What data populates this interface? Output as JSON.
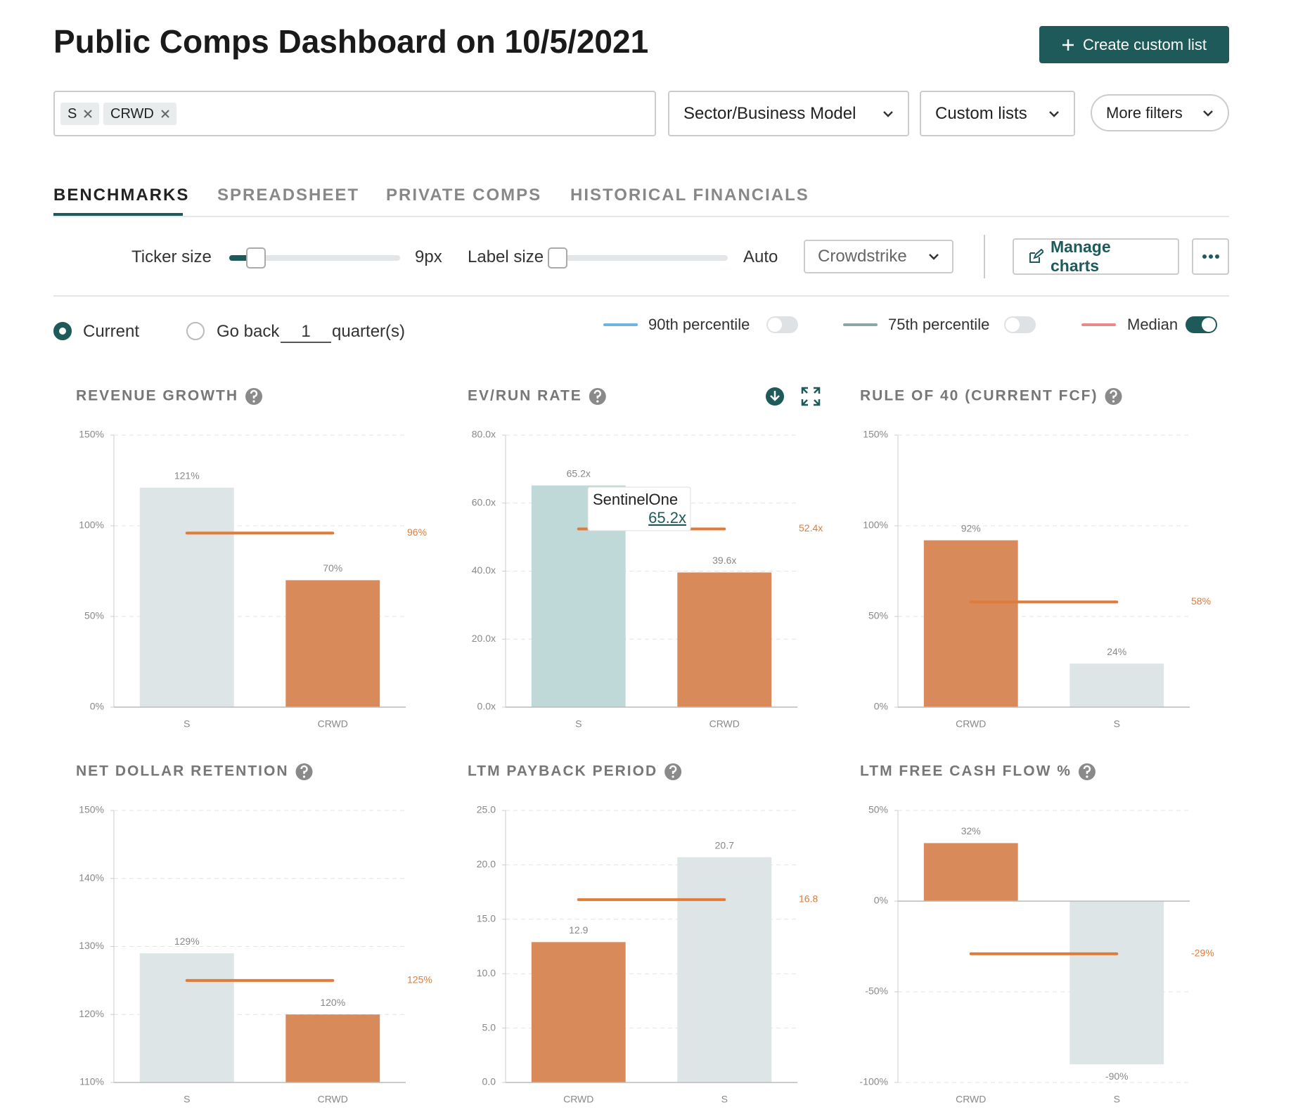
{
  "header": {
    "title": "Public Comps Dashboard on 10/5/2021",
    "button": "Create custom list"
  },
  "filters": {
    "chips": [
      "S",
      "CRWD"
    ],
    "dropdowns": [
      "Sector/Business Model",
      "Custom lists",
      "More filters"
    ]
  },
  "tabs": [
    "BENCHMARKS",
    "SPREADSHEET",
    "PRIVATE COMPS",
    "HISTORICAL FINANCIALS"
  ],
  "controls": {
    "ticker_size": "Ticker size",
    "ticker_value": "9px",
    "label_size": "Label size",
    "label_value": "Auto",
    "company": "Crowdstrike",
    "manage": "Manage charts"
  },
  "period": {
    "current": "Current",
    "go_back": "Go back",
    "quarters": "1",
    "unit": "quarter(s)"
  },
  "legend": [
    {
      "label": "90th percentile",
      "color": "#6fb3e0",
      "on": false
    },
    {
      "label": "75th percentile",
      "color": "#8aa7a3",
      "on": false
    },
    {
      "label": "Median",
      "color": "#e88a8a",
      "on": true
    }
  ],
  "chart_data": [
    {
      "type": "bar",
      "title": "REVENUE GROWTH",
      "categories": [
        "S",
        "CRWD"
      ],
      "values": [
        121,
        70
      ],
      "value_labels": [
        "121%",
        "70%"
      ],
      "colors": [
        "#dde5e6",
        "#d98a5b"
      ],
      "median": {
        "value": 96,
        "label": "96%"
      },
      "median_color": "#e07b39",
      "ylim": [
        0,
        150
      ],
      "yticks": [
        {
          "value": 0,
          "label": "0%"
        },
        {
          "value": 50,
          "label": "50%"
        },
        {
          "value": 100,
          "label": "100%"
        },
        {
          "value": 150,
          "label": "150%"
        }
      ],
      "grid": true
    },
    {
      "type": "bar",
      "title": "EV/RUN RATE",
      "categories": [
        "S",
        "CRWD"
      ],
      "values": [
        65.2,
        39.6
      ],
      "value_labels": [
        "65.2x",
        "39.6x"
      ],
      "colors": [
        "#bfd9d8",
        "#d98a5b"
      ],
      "median": {
        "value": 52.4,
        "label": "52.4x"
      },
      "median_color": "#e07b39",
      "ylim": [
        0,
        80
      ],
      "yticks": [
        {
          "value": 0,
          "label": "0.0x"
        },
        {
          "value": 20,
          "label": "20.0x"
        },
        {
          "value": 40,
          "label": "40.0x"
        },
        {
          "value": 60,
          "label": "60.0x"
        },
        {
          "value": 80,
          "label": "80.0x"
        }
      ],
      "grid": true,
      "tooltip": {
        "title": "SentinelOne",
        "label": "65.2x"
      }
    },
    {
      "type": "bar",
      "title": "RULE OF 40 (CURRENT FCF)",
      "categories": [
        "CRWD",
        "S"
      ],
      "values": [
        92,
        24
      ],
      "value_labels": [
        "92%",
        "24%"
      ],
      "colors": [
        "#d98a5b",
        "#dde5e6"
      ],
      "median": {
        "value": 58,
        "label": "58%"
      },
      "median_color": "#e07b39",
      "ylim": [
        0,
        150
      ],
      "yticks": [
        {
          "value": 0,
          "label": "0%"
        },
        {
          "value": 50,
          "label": "50%"
        },
        {
          "value": 100,
          "label": "100%"
        },
        {
          "value": 150,
          "label": "150%"
        }
      ],
      "grid": true
    },
    {
      "type": "bar",
      "title": "NET DOLLAR RETENTION",
      "categories": [
        "S",
        "CRWD"
      ],
      "values": [
        129,
        120
      ],
      "value_labels": [
        "129%",
        "120%"
      ],
      "colors": [
        "#dde5e6",
        "#d98a5b"
      ],
      "median": {
        "value": 125,
        "label": "125%"
      },
      "median_color": "#e07b39",
      "ylim": [
        110,
        150
      ],
      "yticks": [
        {
          "value": 110,
          "label": "110%"
        },
        {
          "value": 120,
          "label": "120%"
        },
        {
          "value": 130,
          "label": "130%"
        },
        {
          "value": 140,
          "label": "140%"
        },
        {
          "value": 150,
          "label": "150%"
        }
      ],
      "grid": true
    },
    {
      "type": "bar",
      "title": "LTM PAYBACK PERIOD",
      "categories": [
        "CRWD",
        "S"
      ],
      "values": [
        12.9,
        20.7
      ],
      "colors": [
        "#d98a5b",
        "#dde5e6"
      ],
      "median": {
        "value": 16.8
      },
      "median_color": "#e07b39",
      "ylim": [
        0,
        25
      ],
      "yticks": [
        {
          "value": 0,
          "label": "0.0"
        },
        {
          "value": 5,
          "label": "5.0"
        },
        {
          "value": 10,
          "label": "10.0"
        },
        {
          "value": 15,
          "label": "15.0"
        },
        {
          "value": 20,
          "label": "20.0"
        },
        {
          "value": 25,
          "label": "25.0"
        }
      ],
      "grid": true
    },
    {
      "type": "bar",
      "title": "LTM FREE CASH FLOW %",
      "categories": [
        "CRWD",
        "S"
      ],
      "values": [
        32,
        -90
      ],
      "value_labels": [
        "32%",
        "-90%"
      ],
      "colors": [
        "#d98a5b",
        "#dde5e6"
      ],
      "median": {
        "value": -29,
        "label": "-29%"
      },
      "median_color": "#e07b39",
      "ylim": [
        -100,
        50
      ],
      "yticks": [
        {
          "value": -100,
          "label": "-100%"
        },
        {
          "value": -50,
          "label": "-50%"
        },
        {
          "value": 0,
          "label": "0%"
        },
        {
          "value": 50,
          "label": "50%"
        }
      ],
      "grid": true
    }
  ]
}
